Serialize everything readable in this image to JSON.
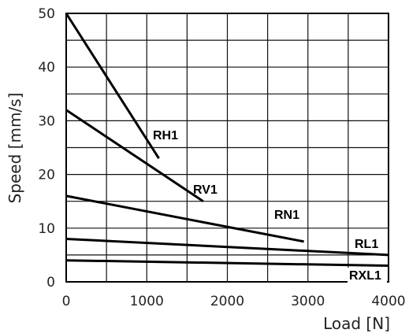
{
  "chart_data": {
    "type": "line",
    "title": "",
    "xlabel": "Load [N]",
    "ylabel": "Speed [mm/s]",
    "xlim": [
      0,
      4000
    ],
    "ylim": [
      0,
      50
    ],
    "x_ticks": [
      "0",
      "1000",
      "2000",
      "3000",
      "4000"
    ],
    "y_ticks": [
      "0",
      "10",
      "20",
      "30",
      "40",
      "50"
    ],
    "grid": true,
    "series": [
      {
        "name": "RH1",
        "x": [
          0,
          1150
        ],
        "y": [
          50,
          23
        ]
      },
      {
        "name": "RV1",
        "x": [
          0,
          1700
        ],
        "y": [
          32,
          15
        ]
      },
      {
        "name": "RN1",
        "x": [
          0,
          2950
        ],
        "y": [
          16,
          7.5
        ]
      },
      {
        "name": "RL1",
        "x": [
          0,
          4000
        ],
        "y": [
          8,
          5
        ]
      },
      {
        "name": "RXL1",
        "x": [
          0,
          4000
        ],
        "y": [
          4,
          3
        ]
      }
    ]
  }
}
